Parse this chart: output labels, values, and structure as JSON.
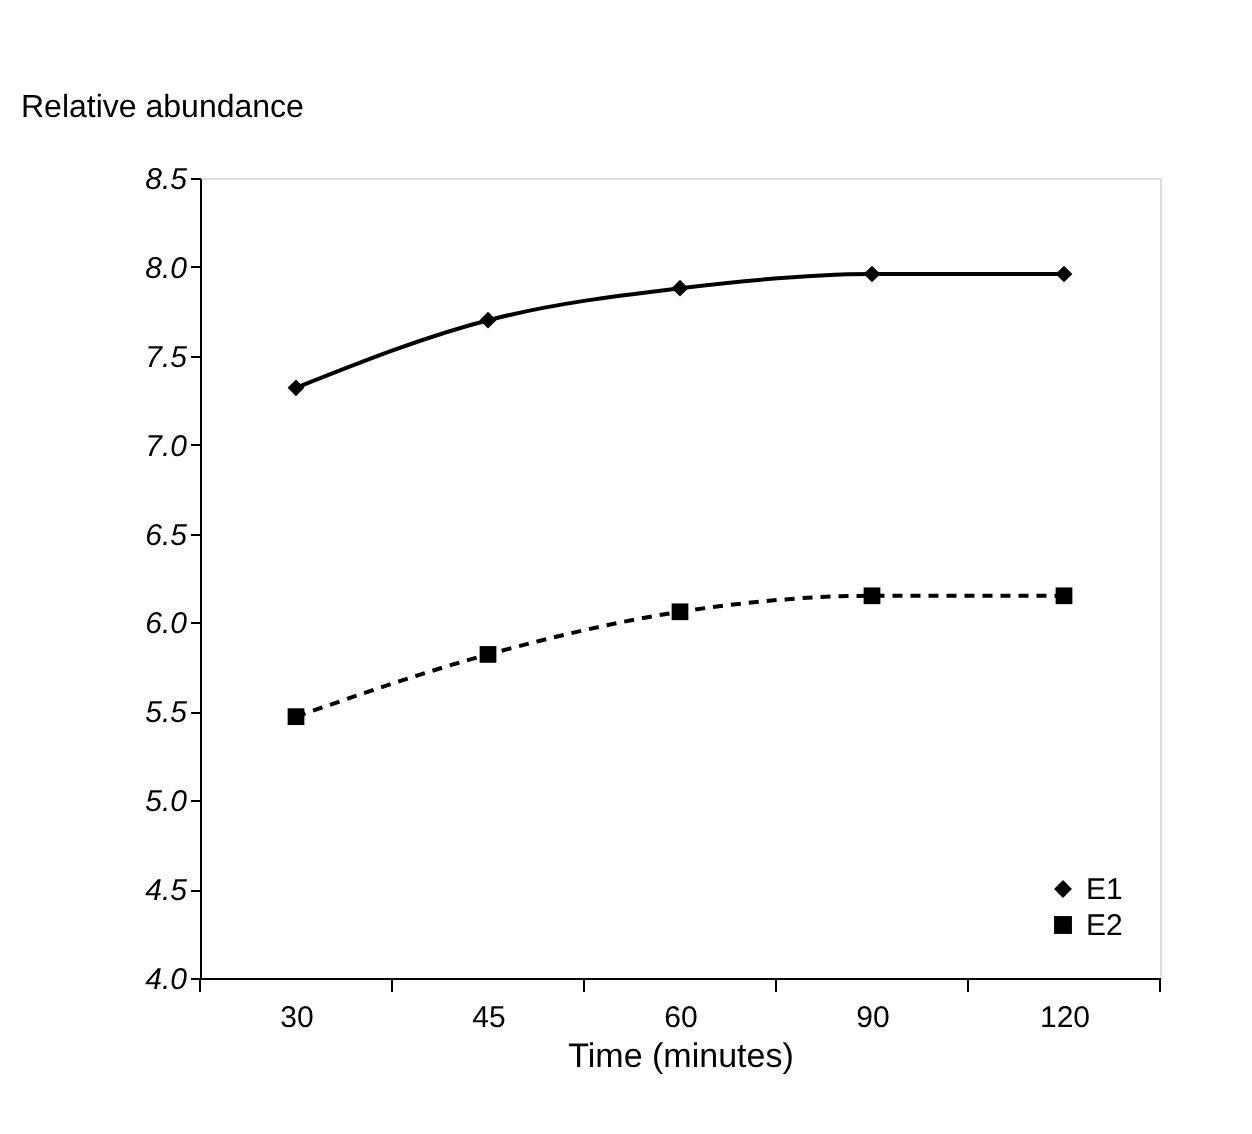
{
  "chart_data": {
    "type": "line",
    "xlabel": "Time (minutes)",
    "ylabel": "Relative abundance",
    "categories": [
      "30",
      "45",
      "60",
      "90",
      "120"
    ],
    "series": [
      {
        "name": "E1",
        "color": "#000000",
        "marker": "diamond",
        "line_style": "solid",
        "values": [
          7.32,
          7.7,
          7.88,
          7.96,
          7.96
        ]
      },
      {
        "name": "E2",
        "color": "#000000",
        "marker": "square",
        "line_style": "dashed",
        "values": [
          5.47,
          5.82,
          6.06,
          6.15,
          6.15
        ]
      }
    ],
    "ylim": [
      4.0,
      8.5
    ],
    "yticks": [
      {
        "value": 4.0,
        "label": "4.0"
      },
      {
        "value": 4.5,
        "label": "4.5"
      },
      {
        "value": 5.0,
        "label": "5.0"
      },
      {
        "value": 5.5,
        "label": "5.5"
      },
      {
        "value": 6.0,
        "label": "6.0"
      },
      {
        "value": 6.5,
        "label": "6.5"
      },
      {
        "value": 7.0,
        "label": "7.0"
      },
      {
        "value": 7.5,
        "label": "7.5"
      },
      {
        "value": 8.0,
        "label": "8.0"
      },
      {
        "value": 8.5,
        "label": "8.5"
      }
    ],
    "grid": false,
    "legend": "bottom right"
  }
}
